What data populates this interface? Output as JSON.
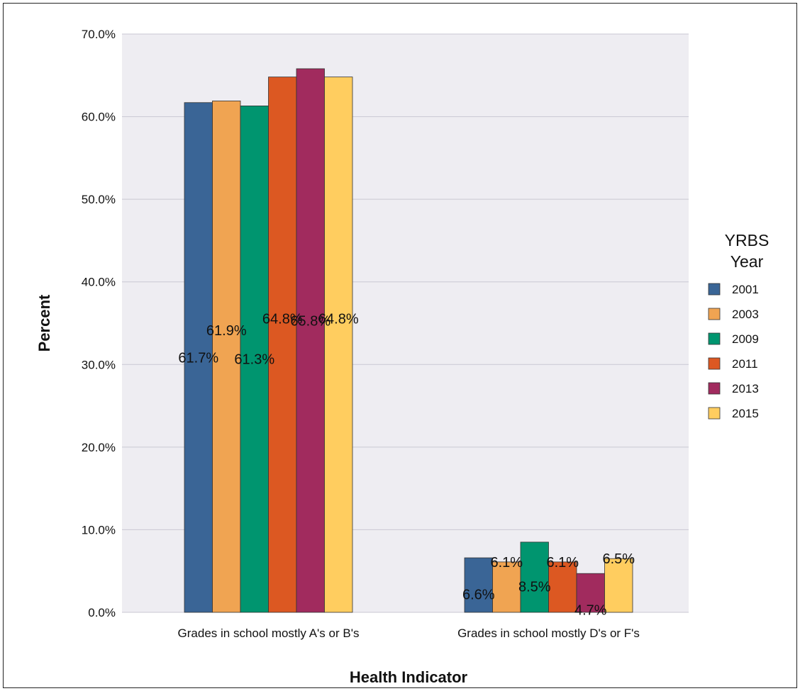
{
  "chart_data": {
    "type": "bar",
    "title": "",
    "xlabel": "Health Indicator",
    "ylabel": "Percent",
    "ylim": [
      0,
      70
    ],
    "y_ticks": [
      0,
      10,
      20,
      30,
      40,
      50,
      60,
      70
    ],
    "y_tick_format": "percent_1dp",
    "grid": true,
    "legend": {
      "title_lines": [
        "YRBS",
        "Year"
      ],
      "position": "right"
    },
    "categories": [
      "Grades in school mostly A's or B's",
      "Grades in school mostly D's or F's"
    ],
    "series": [
      {
        "name": "2001",
        "color": "#3a6596",
        "values": [
          61.7,
          6.6
        ],
        "labels": [
          "61.7%",
          "6.6%"
        ]
      },
      {
        "name": "2003",
        "color": "#f0a452",
        "values": [
          61.9,
          6.1
        ],
        "labels": [
          "61.9%",
          "6.1%"
        ]
      },
      {
        "name": "2009",
        "color": "#00956f",
        "values": [
          61.3,
          8.5
        ],
        "labels": [
          "61.3%",
          "8.5%"
        ]
      },
      {
        "name": "2011",
        "color": "#dc5822",
        "values": [
          64.8,
          6.1
        ],
        "labels": [
          "64.8%",
          "6.1%"
        ]
      },
      {
        "name": "2013",
        "color": "#a12b5e",
        "values": [
          65.8,
          4.7
        ],
        "labels": [
          "65.8%",
          "4.7%"
        ]
      },
      {
        "name": "2015",
        "color": "#ffcd5f",
        "values": [
          64.8,
          6.5
        ],
        "labels": [
          "64.8%",
          "6.5%"
        ]
      }
    ]
  },
  "colors": {
    "plot_background": "#eeedf2",
    "gridline": "#c9c8d3",
    "bar_outline": "#333333"
  }
}
